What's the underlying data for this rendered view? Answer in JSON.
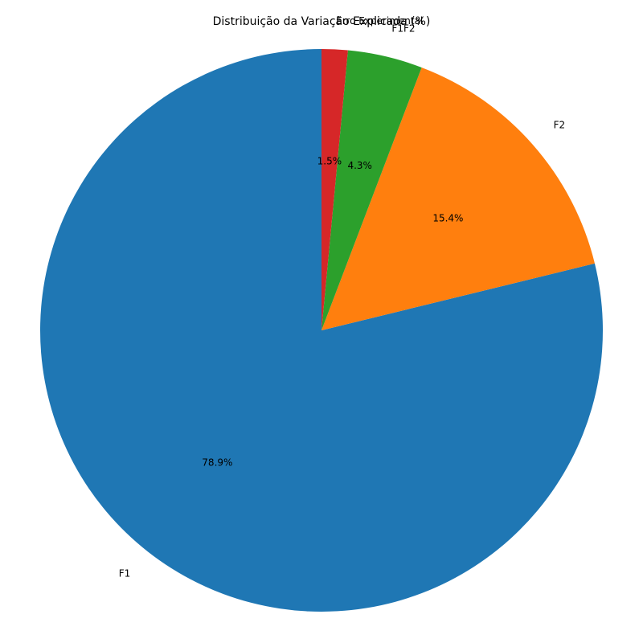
{
  "chart_data": {
    "type": "pie",
    "title": "Distribuição da Variação Explicada (%)",
    "categories": [
      "F1",
      "F2",
      "F1F2",
      "Erro Experimental"
    ],
    "values": [
      78.9,
      15.4,
      4.3,
      1.5
    ],
    "percent_labels": [
      "78.9%",
      "15.4%",
      "4.3%",
      "1.5%"
    ],
    "colors": [
      "#1f77b4",
      "#ff7f0e",
      "#2ca02c",
      "#d62728"
    ],
    "start_angle_deg": 90,
    "direction": "counterclockwise",
    "legend": "none"
  }
}
